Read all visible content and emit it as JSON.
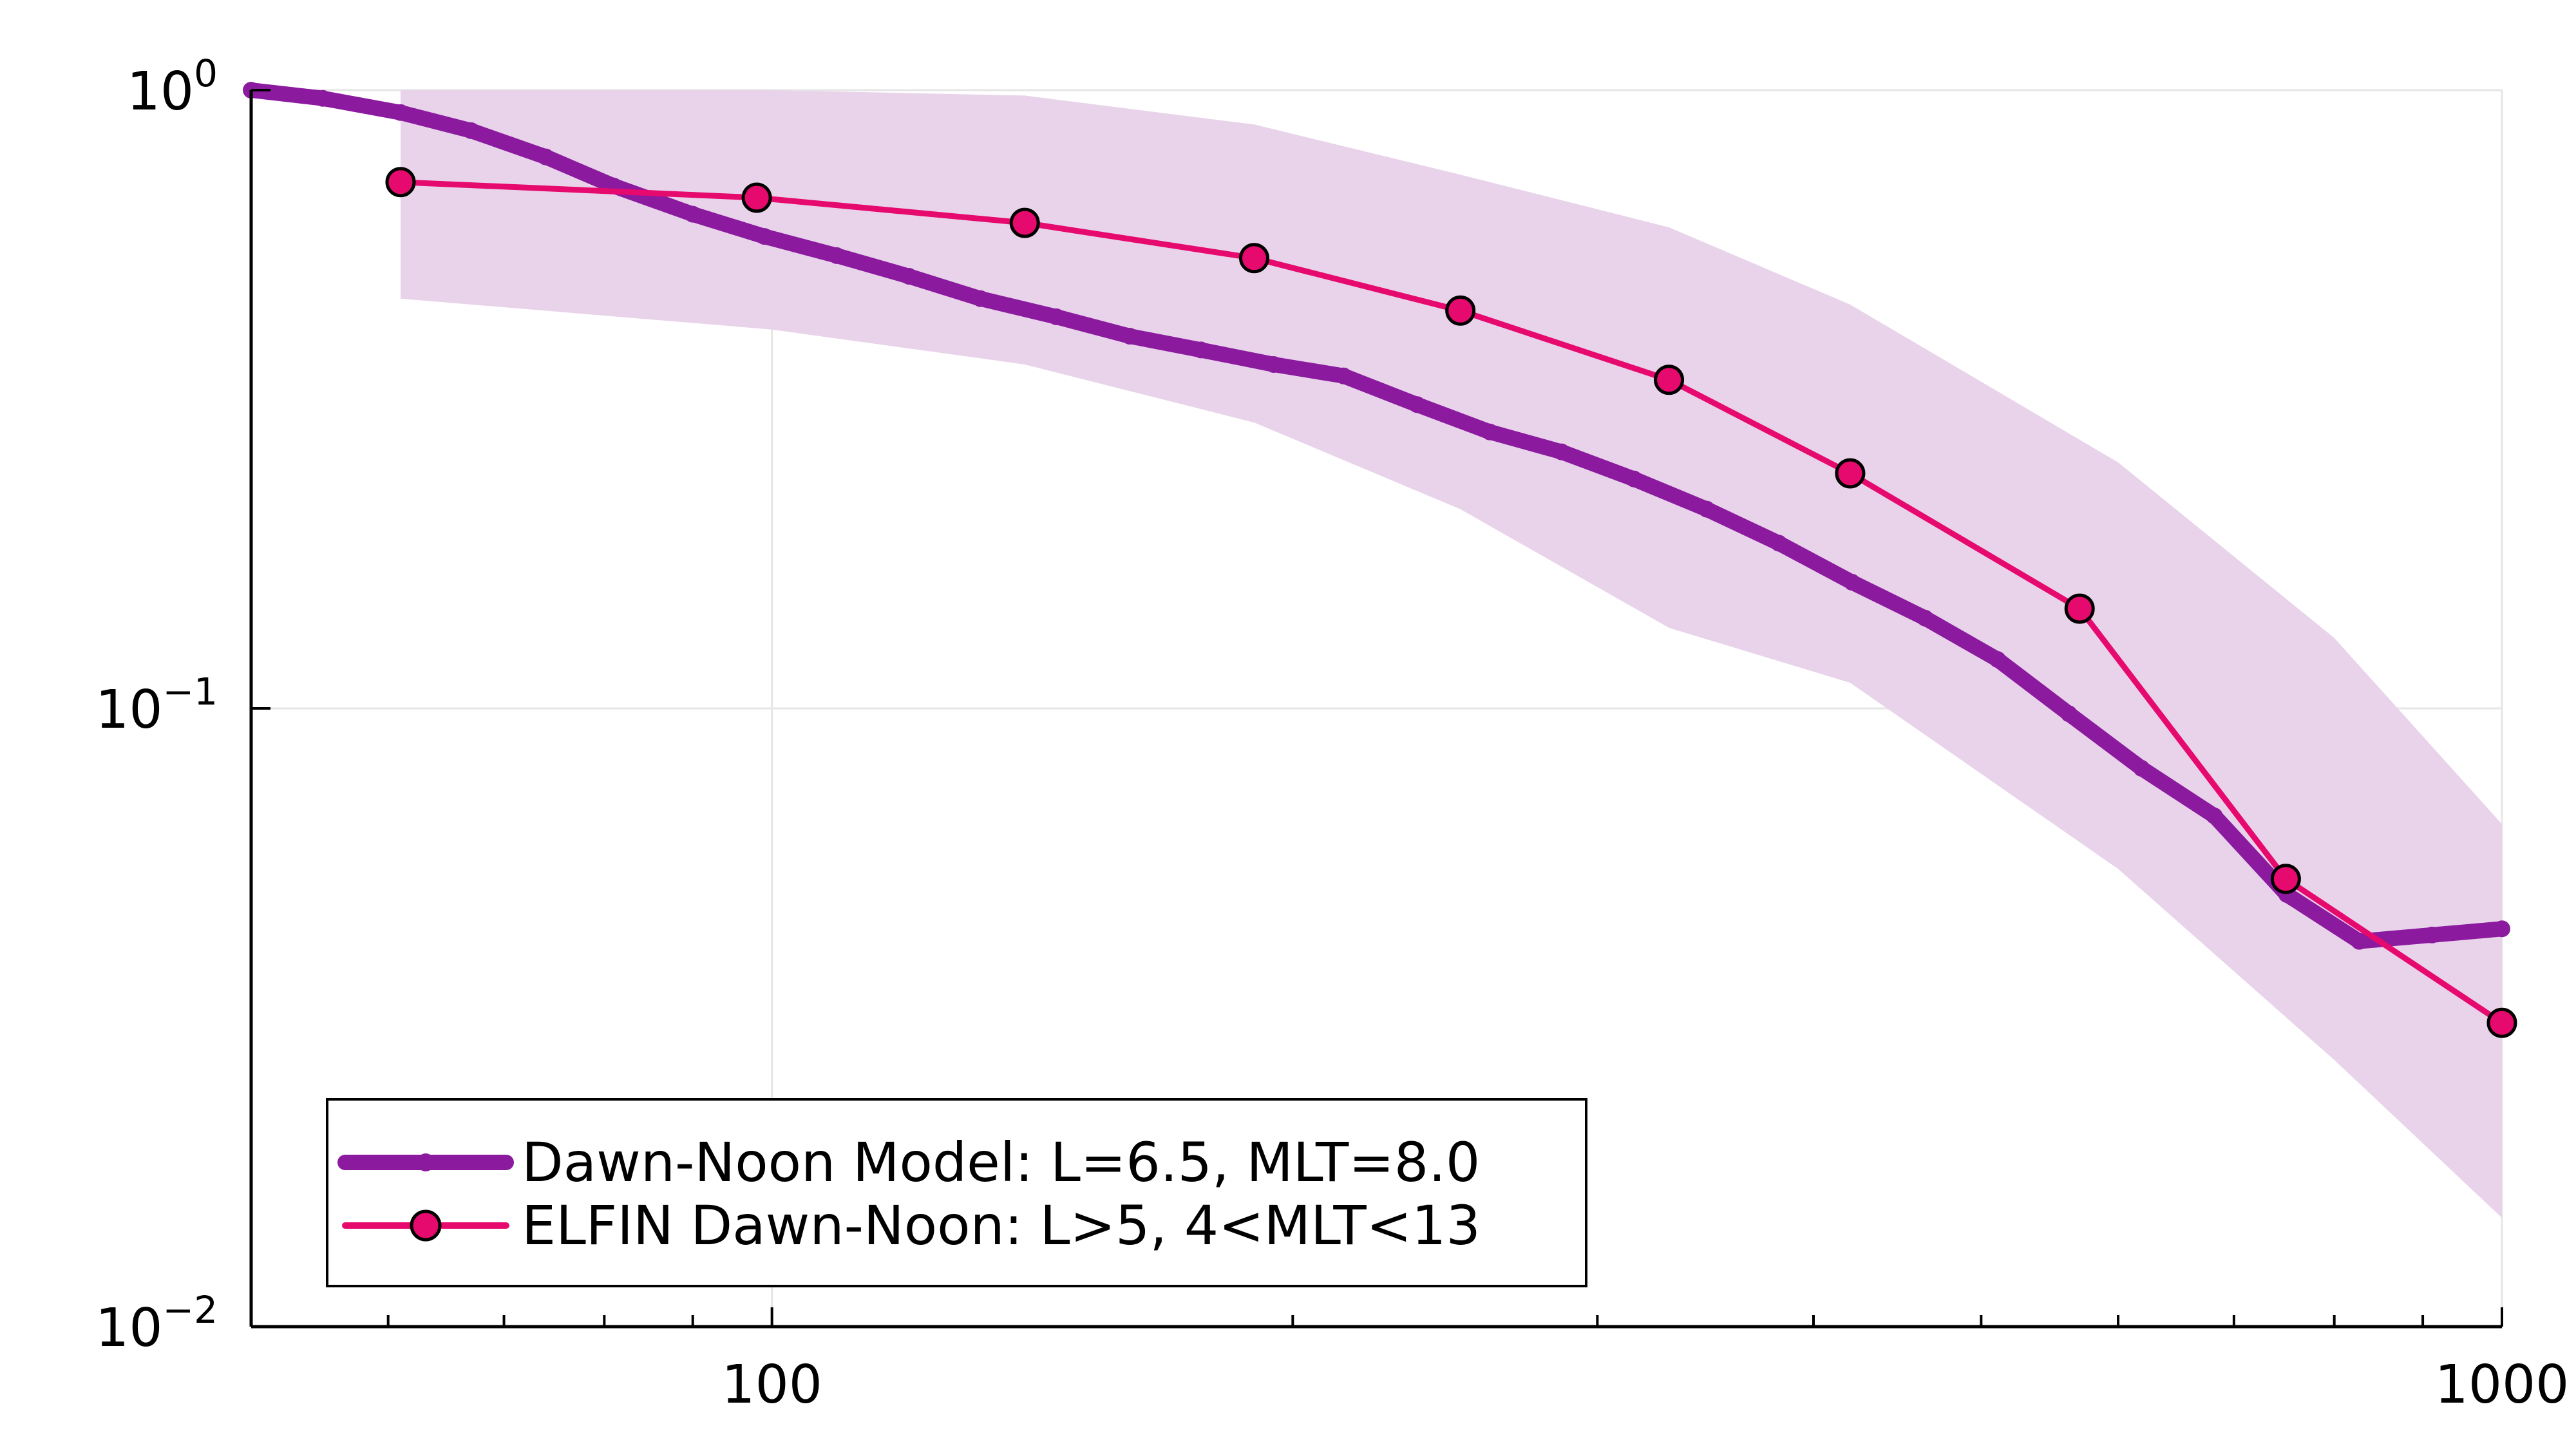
{
  "chart_data": {
    "type": "line",
    "title": "",
    "xlabel": "",
    "ylabel": "",
    "x_scale": "log",
    "y_scale": "log",
    "xlim": [
      50,
      1000
    ],
    "ylim": [
      0.01,
      1.0
    ],
    "grid": true,
    "legend_position": "bottom-left",
    "x_ticks": [
      {
        "value": 100,
        "label": "100"
      },
      {
        "value": 1000,
        "label": "1000"
      }
    ],
    "y_ticks": [
      {
        "value": 1.0,
        "base": "10",
        "exp": "0"
      },
      {
        "value": 0.1,
        "base": "10",
        "exp": "−1"
      },
      {
        "value": 0.01,
        "base": "10",
        "exp": "−2"
      }
    ],
    "band": {
      "color": "#e8d3ea",
      "x": [
        61,
        100,
        140,
        190,
        250,
        330,
        420,
        600,
        800,
        1000
      ],
      "upper": [
        1.0,
        1.0,
        0.98,
        0.88,
        0.73,
        0.6,
        0.45,
        0.25,
        0.13,
        0.065
      ],
      "lower": [
        0.46,
        0.41,
        0.36,
        0.29,
        0.21,
        0.135,
        0.11,
        0.055,
        0.027,
        0.015
      ]
    },
    "series": [
      {
        "name": "Dawn-Noon Model: L=6.5, MLT=8.0",
        "color": "#8b1a9f",
        "marker": "small-dot",
        "x": [
          50,
          55,
          61,
          67,
          74,
          81,
          90,
          99,
          109,
          120,
          132,
          146,
          161,
          177,
          195,
          214,
          236,
          260,
          286,
          315,
          347,
          382,
          421,
          464,
          511,
          562,
          619,
          682,
          751,
          827,
          911,
          1000
        ],
        "y": [
          1.0,
          0.97,
          0.92,
          0.86,
          0.78,
          0.7,
          0.63,
          0.58,
          0.54,
          0.5,
          0.46,
          0.43,
          0.4,
          0.38,
          0.36,
          0.345,
          0.31,
          0.28,
          0.26,
          0.235,
          0.21,
          0.185,
          0.16,
          0.14,
          0.12,
          0.098,
          0.08,
          0.067,
          0.05,
          0.042,
          0.043,
          0.044
        ]
      },
      {
        "name": "ELFIN Dawn-Noon: L>5, 4<MLT<13",
        "color": "#e6096e",
        "marker": "circle",
        "x": [
          61,
          98,
          140,
          190,
          250,
          330,
          420,
          570,
          750,
          1000
        ],
        "y": [
          0.71,
          0.67,
          0.61,
          0.535,
          0.44,
          0.34,
          0.24,
          0.145,
          0.053,
          0.031
        ]
      }
    ]
  }
}
